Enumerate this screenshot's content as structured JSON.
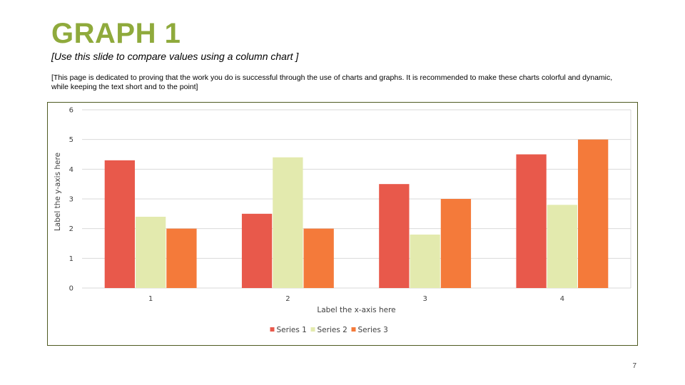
{
  "slide": {
    "title": "GRAPH 1",
    "subtitle": "[Use this slide to compare values using a column chart ]",
    "description": "[This page is dedicated to proving that the work you do is successful through the use of charts and graphs. It is recommended to make these charts colorful and dynamic, while keeping the text short and to the point]",
    "page_number": "7"
  },
  "colors": {
    "title": "#8faa3c",
    "frame": "#4f5a22",
    "gridline": "#d9d9d9"
  },
  "chart_data": {
    "type": "bar",
    "categories": [
      "1",
      "2",
      "3",
      "4"
    ],
    "series": [
      {
        "name": "Series 1",
        "values": [
          4.3,
          2.5,
          3.5,
          4.5
        ],
        "color": "#e8594b"
      },
      {
        "name": "Series 2",
        "values": [
          2.4,
          4.4,
          1.8,
          2.8
        ],
        "color": "#e3eaae"
      },
      {
        "name": "Series 3",
        "values": [
          2,
          2,
          3,
          5
        ],
        "color": "#f47a3a"
      }
    ],
    "xlabel": "Label the x-axis here",
    "ylabel": "Label the y-axis here",
    "ylim": [
      0,
      6
    ],
    "yticks": [
      "0",
      "1",
      "2",
      "3",
      "4",
      "5",
      "6"
    ],
    "grid": true,
    "legend": "bottom"
  }
}
